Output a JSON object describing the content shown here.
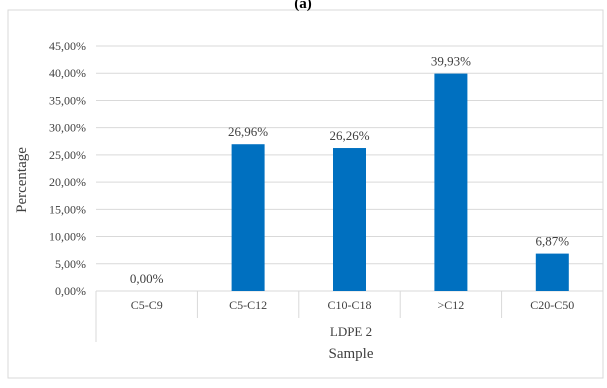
{
  "panel_label": "(a)",
  "chart_data": {
    "type": "bar",
    "title": "",
    "group_label": "LDPE 2",
    "xlabel": "Sample",
    "ylabel": "Percentage",
    "categories": [
      "C5-C9",
      "C5-C12",
      "C10-C18",
      ">C12",
      "C20-C50"
    ],
    "values": [
      0.0,
      26.96,
      26.26,
      39.93,
      6.87
    ],
    "data_labels": [
      "0,00%",
      "26,96%",
      "26,26%",
      "39,93%",
      "6,87%"
    ],
    "ylim": [
      0,
      45
    ],
    "yticks": [
      0,
      5,
      10,
      15,
      20,
      25,
      30,
      35,
      40,
      45
    ],
    "ytick_labels": [
      "0,00%",
      "5,00%",
      "10,00%",
      "15,00%",
      "20,00%",
      "25,00%",
      "30,00%",
      "35,00%",
      "40,00%",
      "45,00%"
    ],
    "grid": true,
    "bar_color": "#0070C0",
    "grid_color": "#D9D9D9"
  }
}
